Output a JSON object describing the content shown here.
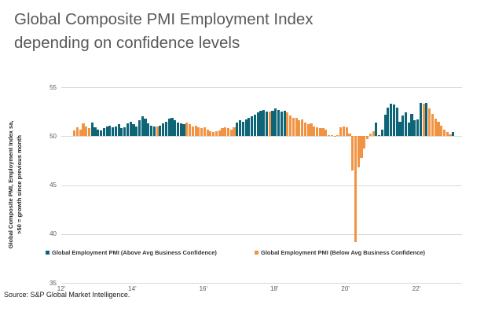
{
  "title": {
    "line1": "Global Composite PMI Employment Index",
    "line2": "depending on confidence levels"
  },
  "source": "Source: S&P Global Market Intelligence.",
  "colors": {
    "above": "#0f6578",
    "below": "#f09443",
    "gridline": "#d9d9d9",
    "title_text": "#58595b",
    "axis_text": "#595959"
  },
  "y_axis": {
    "label_line1": "Global Composite PMI, Employment Index sa,",
    "label_line2": ">50 = growth since previous month",
    "ticks": [
      55,
      50,
      45,
      40,
      35
    ]
  },
  "x_axis": {
    "ticks": [
      "12'",
      "14'",
      "16'",
      "18'",
      "20'",
      "22'"
    ]
  },
  "legend": {
    "above_label": "Global Employment PMI (Above Avg Business Confidence)",
    "below_label": "Global Employment PMI (Below Avg Business Confidence)"
  },
  "chart_data": {
    "type": "bar",
    "title": "Global Composite PMI Employment Index depending on confidence levels",
    "xlabel": "",
    "ylabel": "Global Composite PMI, Employment Index sa, >50 = growth since previous month",
    "ylim": [
      35,
      55
    ],
    "baseline": 50,
    "grid": true,
    "legend_position": "bottom",
    "x_tick_labels": [
      "12'",
      "14'",
      "16'",
      "18'",
      "20'",
      "22'"
    ],
    "x_tick_years": [
      2012,
      2014,
      2016,
      2018,
      2020,
      2022
    ],
    "frequency": "monthly",
    "first_bar_month_offset_from_first_tick": 4,
    "series": [
      {
        "name": "Global Employment PMI (Above Avg Business Confidence)",
        "key": "a",
        "color": "#0f6578"
      },
      {
        "name": "Global Employment PMI (Below Avg Business Confidence)",
        "key": "b",
        "color": "#f09443"
      }
    ],
    "points": [
      [
        50.6,
        "b"
      ],
      [
        50.9,
        "b"
      ],
      [
        50.7,
        "b"
      ],
      [
        51.3,
        "b"
      ],
      [
        51.0,
        "b"
      ],
      [
        50.8,
        "b"
      ],
      [
        51.4,
        "a"
      ],
      [
        50.9,
        "a"
      ],
      [
        50.7,
        "a"
      ],
      [
        50.6,
        "a"
      ],
      [
        50.8,
        "a"
      ],
      [
        51.0,
        "a"
      ],
      [
        51.1,
        "a"
      ],
      [
        50.9,
        "a"
      ],
      [
        51.0,
        "a"
      ],
      [
        51.2,
        "a"
      ],
      [
        50.8,
        "a"
      ],
      [
        50.9,
        "a"
      ],
      [
        51.3,
        "a"
      ],
      [
        51.5,
        "a"
      ],
      [
        51.2,
        "a"
      ],
      [
        51.0,
        "a"
      ],
      [
        51.6,
        "a"
      ],
      [
        52.0,
        "a"
      ],
      [
        51.8,
        "a"
      ],
      [
        51.3,
        "a"
      ],
      [
        51.1,
        "a"
      ],
      [
        51.0,
        "a"
      ],
      [
        51.0,
        "b"
      ],
      [
        51.1,
        "a"
      ],
      [
        51.3,
        "a"
      ],
      [
        51.5,
        "a"
      ],
      [
        51.8,
        "a"
      ],
      [
        51.9,
        "a"
      ],
      [
        51.6,
        "a"
      ],
      [
        51.4,
        "a"
      ],
      [
        51.3,
        "a"
      ],
      [
        51.2,
        "a"
      ],
      [
        51.4,
        "b"
      ],
      [
        51.2,
        "b"
      ],
      [
        51.0,
        "b"
      ],
      [
        51.1,
        "b"
      ],
      [
        50.9,
        "b"
      ],
      [
        50.8,
        "b"
      ],
      [
        50.9,
        "b"
      ],
      [
        50.7,
        "b"
      ],
      [
        50.5,
        "b"
      ],
      [
        50.4,
        "b"
      ],
      [
        50.5,
        "b"
      ],
      [
        50.6,
        "b"
      ],
      [
        50.8,
        "b"
      ],
      [
        50.9,
        "b"
      ],
      [
        50.8,
        "b"
      ],
      [
        50.7,
        "b"
      ],
      [
        50.9,
        "b"
      ],
      [
        51.4,
        "a"
      ],
      [
        51.6,
        "a"
      ],
      [
        51.5,
        "a"
      ],
      [
        51.7,
        "a"
      ],
      [
        51.9,
        "a"
      ],
      [
        52.0,
        "a"
      ],
      [
        52.2,
        "a"
      ],
      [
        52.4,
        "a"
      ],
      [
        52.6,
        "a"
      ],
      [
        52.7,
        "a"
      ],
      [
        52.5,
        "a"
      ],
      [
        52.5,
        "b"
      ],
      [
        52.6,
        "a"
      ],
      [
        52.8,
        "a"
      ],
      [
        52.7,
        "a"
      ],
      [
        52.5,
        "a"
      ],
      [
        52.6,
        "a"
      ],
      [
        52.4,
        "b"
      ],
      [
        52.1,
        "b"
      ],
      [
        51.9,
        "b"
      ],
      [
        51.9,
        "b"
      ],
      [
        51.6,
        "b"
      ],
      [
        51.7,
        "b"
      ],
      [
        51.4,
        "b"
      ],
      [
        51.2,
        "b"
      ],
      [
        51.3,
        "b"
      ],
      [
        51.0,
        "b"
      ],
      [
        50.9,
        "b"
      ],
      [
        50.8,
        "b"
      ],
      [
        50.8,
        "b"
      ],
      [
        50.7,
        "b"
      ],
      [
        50.1,
        "b"
      ],
      [
        50.1,
        "b"
      ],
      [
        50.0,
        "b"
      ],
      [
        50.1,
        "b"
      ],
      [
        50.9,
        "b"
      ],
      [
        51.0,
        "b"
      ],
      [
        50.9,
        "b"
      ],
      [
        50.3,
        "b"
      ],
      [
        46.5,
        "b"
      ],
      [
        39.2,
        "b"
      ],
      [
        46.8,
        "b"
      ],
      [
        47.8,
        "b"
      ],
      [
        48.7,
        "b"
      ],
      [
        49.7,
        "b"
      ],
      [
        50.3,
        "b"
      ],
      [
        50.5,
        "b"
      ],
      [
        51.4,
        "a"
      ],
      [
        50.1,
        "a"
      ],
      [
        50.7,
        "a"
      ],
      [
        52.2,
        "a"
      ],
      [
        52.9,
        "a"
      ],
      [
        53.3,
        "a"
      ],
      [
        53.2,
        "a"
      ],
      [
        52.9,
        "a"
      ],
      [
        51.5,
        "a"
      ],
      [
        52.1,
        "a"
      ],
      [
        52.4,
        "a"
      ],
      [
        51.4,
        "a"
      ],
      [
        52.3,
        "a"
      ],
      [
        51.6,
        "a"
      ],
      [
        51.7,
        "a"
      ],
      [
        53.4,
        "a"
      ],
      [
        53.3,
        "b"
      ],
      [
        53.4,
        "a"
      ],
      [
        52.8,
        "b"
      ],
      [
        52.3,
        "b"
      ],
      [
        51.8,
        "b"
      ],
      [
        51.5,
        "b"
      ],
      [
        51.1,
        "b"
      ],
      [
        50.7,
        "b"
      ],
      [
        50.4,
        "b"
      ],
      [
        50.2,
        "b"
      ],
      [
        50.4,
        "a"
      ]
    ]
  }
}
